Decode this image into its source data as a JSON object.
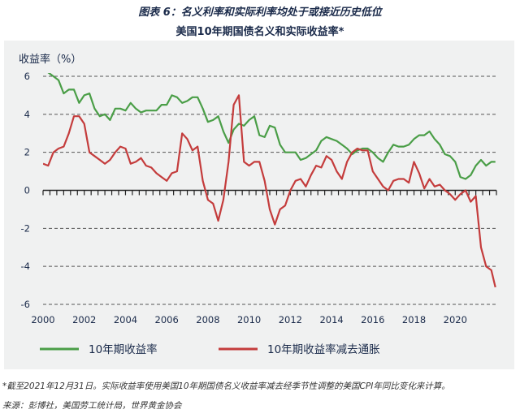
{
  "header": {
    "figure_title": "图表 6：名义利率和实际利率均处于或接近历史低位",
    "chart_title": "美国10年期国债名义和实际收益率*"
  },
  "footer": {
    "footnote": "*截至2021年12月31日。实际收益率使用美国10年期国债名义收益率减去经季节性调整的美国CPI年同比变化来计算。",
    "source": "来源：彭博社，美国劳工统计局，世界黄金协会"
  },
  "colors": {
    "nominal": "#4a9e47",
    "real": "#c43c3c",
    "panel_bg": "#f0f1f1",
    "text": "#1a2a4a"
  },
  "chart_data": {
    "type": "line",
    "title": "美国10年期国债名义和实际收益率*",
    "ylabel": "收益率（%）",
    "xlabel": "",
    "xlim": [
      2000,
      2022
    ],
    "ylim": [
      -6,
      6
    ],
    "x_ticks": [
      "2000",
      "2002",
      "2004",
      "2006",
      "2008",
      "2010",
      "2012",
      "2014",
      "2016",
      "2018",
      "2020"
    ],
    "y_ticks": [
      "6",
      "4",
      "2",
      "0",
      "-2",
      "-4",
      "-6"
    ],
    "grid": "horizontal dashed",
    "legend": "bottom",
    "series": [
      {
        "name": "10年期收益率",
        "color": "#4a9e47",
        "x": [
          2000.0,
          2000.25,
          2000.5,
          2000.75,
          2001.0,
          2001.25,
          2001.5,
          2001.75,
          2002.0,
          2002.25,
          2002.5,
          2002.75,
          2003.0,
          2003.25,
          2003.5,
          2003.75,
          2004.0,
          2004.25,
          2004.5,
          2004.75,
          2005.0,
          2005.25,
          2005.5,
          2005.75,
          2006.0,
          2006.25,
          2006.5,
          2006.75,
          2007.0,
          2007.25,
          2007.5,
          2007.75,
          2008.0,
          2008.25,
          2008.5,
          2008.75,
          2009.0,
          2009.25,
          2009.5,
          2009.75,
          2010.0,
          2010.25,
          2010.5,
          2010.75,
          2011.0,
          2011.25,
          2011.5,
          2011.75,
          2012.0,
          2012.25,
          2012.5,
          2012.75,
          2013.0,
          2013.25,
          2013.5,
          2013.75,
          2014.0,
          2014.25,
          2014.5,
          2014.75,
          2015.0,
          2015.25,
          2015.5,
          2015.75,
          2016.0,
          2016.25,
          2016.5,
          2016.75,
          2017.0,
          2017.25,
          2017.5,
          2017.75,
          2018.0,
          2018.25,
          2018.5,
          2018.75,
          2019.0,
          2019.25,
          2019.5,
          2019.75,
          2020.0,
          2020.25,
          2020.5,
          2020.75,
          2021.0,
          2021.25,
          2021.5,
          2021.75,
          2021.95
        ],
        "values": [
          6.5,
          6.2,
          6.0,
          5.8,
          5.1,
          5.3,
          5.3,
          4.6,
          5.0,
          5.1,
          4.3,
          3.9,
          4.0,
          3.7,
          4.3,
          4.3,
          4.2,
          4.6,
          4.3,
          4.1,
          4.2,
          4.2,
          4.2,
          4.5,
          4.5,
          5.0,
          4.9,
          4.6,
          4.7,
          4.9,
          4.9,
          4.3,
          3.6,
          3.7,
          3.9,
          3.1,
          2.5,
          3.2,
          3.5,
          3.4,
          3.7,
          3.9,
          2.9,
          2.8,
          3.4,
          3.3,
          2.4,
          2.0,
          2.0,
          2.0,
          1.6,
          1.7,
          1.9,
          2.1,
          2.6,
          2.8,
          2.7,
          2.6,
          2.4,
          2.2,
          1.9,
          2.1,
          2.2,
          2.2,
          2.0,
          1.7,
          1.5,
          2.0,
          2.4,
          2.3,
          2.3,
          2.4,
          2.7,
          2.9,
          2.9,
          3.1,
          2.7,
          2.4,
          1.9,
          1.8,
          1.5,
          0.7,
          0.6,
          0.8,
          1.3,
          1.6,
          1.3,
          1.5,
          1.5
        ]
      },
      {
        "name": "10年期收益率减去通胀",
        "color": "#c43c3c",
        "x": [
          2000.0,
          2000.25,
          2000.5,
          2000.75,
          2001.0,
          2001.25,
          2001.5,
          2001.75,
          2002.0,
          2002.25,
          2002.5,
          2002.75,
          2003.0,
          2003.25,
          2003.5,
          2003.75,
          2004.0,
          2004.25,
          2004.5,
          2004.75,
          2005.0,
          2005.25,
          2005.5,
          2005.75,
          2006.0,
          2006.25,
          2006.5,
          2006.75,
          2007.0,
          2007.25,
          2007.5,
          2007.75,
          2008.0,
          2008.25,
          2008.5,
          2008.75,
          2009.0,
          2009.25,
          2009.5,
          2009.75,
          2010.0,
          2010.25,
          2010.5,
          2010.75,
          2011.0,
          2011.25,
          2011.5,
          2011.75,
          2012.0,
          2012.25,
          2012.5,
          2012.75,
          2013.0,
          2013.25,
          2013.5,
          2013.75,
          2014.0,
          2014.25,
          2014.5,
          2014.75,
          2015.0,
          2015.25,
          2015.5,
          2015.75,
          2016.0,
          2016.25,
          2016.5,
          2016.75,
          2017.0,
          2017.25,
          2017.5,
          2017.75,
          2018.0,
          2018.25,
          2018.5,
          2018.75,
          2019.0,
          2019.25,
          2019.5,
          2019.75,
          2020.0,
          2020.25,
          2020.5,
          2020.75,
          2021.0,
          2021.25,
          2021.5,
          2021.75,
          2021.95
        ],
        "values": [
          1.4,
          1.3,
          2.0,
          2.2,
          2.3,
          3.0,
          3.9,
          3.9,
          3.5,
          2.0,
          1.8,
          1.6,
          1.4,
          1.6,
          2.0,
          2.3,
          2.2,
          1.4,
          1.5,
          1.7,
          1.3,
          1.2,
          0.9,
          0.7,
          0.5,
          0.9,
          1.0,
          3.0,
          2.7,
          2.1,
          2.3,
          0.5,
          -0.5,
          -0.7,
          -1.6,
          -0.5,
          1.5,
          4.5,
          5.0,
          1.5,
          1.3,
          1.5,
          1.5,
          0.5,
          -1.0,
          -1.8,
          -1.0,
          -0.8,
          0.0,
          0.5,
          0.6,
          0.2,
          0.8,
          1.3,
          1.2,
          1.8,
          1.6,
          1.0,
          0.6,
          1.5,
          2.0,
          2.2,
          2.1,
          2.1,
          1.0,
          0.6,
          0.2,
          0.0,
          0.5,
          0.6,
          0.6,
          0.4,
          1.5,
          0.9,
          0.1,
          0.6,
          0.2,
          0.3,
          0.0,
          -0.2,
          -0.5,
          -0.2,
          0.0,
          -0.6,
          -0.3,
          -3.0,
          -4.0,
          -4.2,
          -5.1
        ]
      }
    ]
  }
}
